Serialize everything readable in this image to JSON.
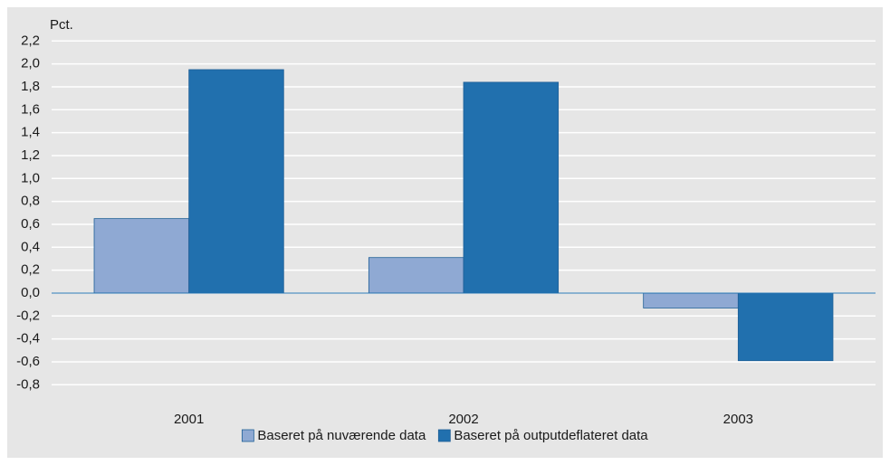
{
  "chart_data": {
    "type": "bar",
    "y_label": "Pct.",
    "categories": [
      "2001",
      "2002",
      "2003"
    ],
    "series": [
      {
        "name": "Baseret på nuværende data",
        "color": "#8fa9d3",
        "values": [
          0.65,
          0.31,
          -0.13
        ]
      },
      {
        "name": "Baseret på outputdeflateret data",
        "color": "#2170ae",
        "values": [
          1.95,
          1.84,
          -0.59
        ]
      }
    ],
    "ylim": [
      -0.8,
      2.2
    ],
    "yticks": [
      {
        "value": -0.8,
        "label": "-0,8"
      },
      {
        "value": -0.6,
        "label": "-0,6"
      },
      {
        "value": -0.4,
        "label": "-0,4"
      },
      {
        "value": -0.2,
        "label": "-0,2"
      },
      {
        "value": 0,
        "label": "0,0"
      },
      {
        "value": 0.2,
        "label": "0,2"
      },
      {
        "value": 0.4,
        "label": "0,4"
      },
      {
        "value": 0.6,
        "label": "0,6"
      },
      {
        "value": 0.8,
        "label": "0,8"
      },
      {
        "value": 1.0,
        "label": "1,0"
      },
      {
        "value": 1.2,
        "label": "1,2"
      },
      {
        "value": 1.4,
        "label": "1,4"
      },
      {
        "value": 1.6,
        "label": "1,6"
      },
      {
        "value": 1.8,
        "label": "1,8"
      },
      {
        "value": 2.0,
        "label": "2,0"
      },
      {
        "value": 2.2,
        "label": "2,2"
      }
    ],
    "grid": true,
    "legend": "bottom"
  }
}
